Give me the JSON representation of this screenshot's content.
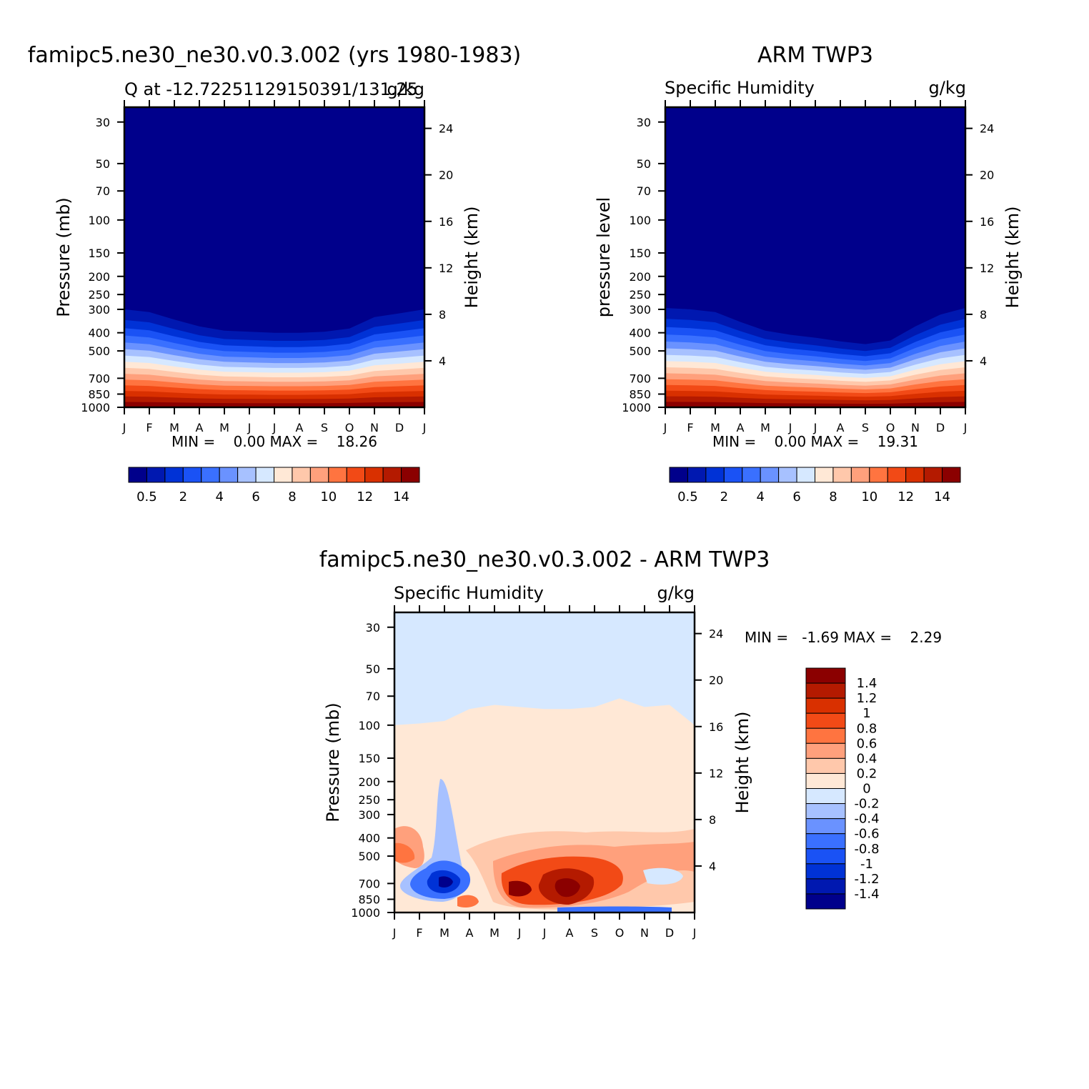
{
  "chart_data": [
    {
      "type": "heatmap",
      "title": "famipc5.ne30_ne30.v0.3.002 (yrs 1980-1983)",
      "subtitle_left": "Q at -12.72251129150391/131.25",
      "subtitle_right": "g/kg",
      "ylabel": "Pressure (mb)",
      "y2label": "Height (km)",
      "x": [
        "J",
        "F",
        "M",
        "A",
        "M",
        "J",
        "J",
        "A",
        "S",
        "O",
        "N",
        "D",
        "J"
      ],
      "y": [
        1000,
        850,
        700,
        500,
        400,
        300,
        250,
        200,
        150,
        100,
        70,
        50,
        30
      ],
      "y2": [
        4,
        8,
        12,
        16,
        20,
        24
      ],
      "yscale": "log",
      "ylim": [
        1000,
        25
      ],
      "stats_text": "MIN =    0.00 MAX =    18.26",
      "min": 0.0,
      "max": 18.26,
      "colorbar": {
        "orientation": "horizontal",
        "labels": [
          "0.5",
          "2",
          "4",
          "6",
          "8",
          "10",
          "12",
          "14"
        ],
        "levels": [
          0.5,
          1,
          2,
          3,
          4,
          5,
          6,
          7,
          8,
          9,
          10,
          11,
          12,
          13,
          14
        ],
        "colors": [
          "#00008b",
          "#0018b0",
          "#0032d6",
          "#1a52f5",
          "#3a70ff",
          "#6a92ff",
          "#a7c1ff",
          "#d6e8ff",
          "#ffe8d6",
          "#ffc8ab",
          "#ffa07c",
          "#ff7440",
          "#f24a16",
          "#d93000",
          "#b41a00",
          "#8b0000"
        ]
      },
      "transition_top_mb": [
        300,
        310,
        340,
        370,
        390,
        395,
        400,
        400,
        395,
        380,
        330,
        315,
        300
      ]
    },
    {
      "type": "heatmap",
      "title": "ARM TWP3",
      "subtitle_left": "Specific Humidity",
      "subtitle_right": "g/kg",
      "ylabel": "pressure level",
      "y2label": "Height (km)",
      "x": [
        "J",
        "F",
        "M",
        "A",
        "M",
        "J",
        "J",
        "A",
        "S",
        "O",
        "N",
        "D",
        "J"
      ],
      "y": [
        1000,
        850,
        700,
        500,
        400,
        300,
        250,
        200,
        150,
        100,
        70,
        50,
        30
      ],
      "y2": [
        4,
        8,
        12,
        16,
        20,
        24
      ],
      "yscale": "log",
      "ylim": [
        1000,
        25
      ],
      "stats_text": "MIN =    0.00 MAX =    19.31",
      "min": 0.0,
      "max": 19.31,
      "colorbar": {
        "orientation": "horizontal",
        "labels": [
          "0.5",
          "2",
          "4",
          "6",
          "8",
          "10",
          "12",
          "14"
        ],
        "levels": [
          0.5,
          1,
          2,
          3,
          4,
          5,
          6,
          7,
          8,
          9,
          10,
          11,
          12,
          13,
          14
        ],
        "colors": [
          "#00008b",
          "#0018b0",
          "#0032d6",
          "#1a52f5",
          "#3a70ff",
          "#6a92ff",
          "#a7c1ff",
          "#d6e8ff",
          "#ffe8d6",
          "#ffc8ab",
          "#ffa07c",
          "#ff7440",
          "#f24a16",
          "#d93000",
          "#b41a00",
          "#8b0000"
        ]
      },
      "transition_top_mb": [
        295,
        300,
        310,
        350,
        390,
        410,
        425,
        445,
        460,
        440,
        370,
        320,
        295
      ]
    },
    {
      "type": "heatmap",
      "title": "famipc5.ne30_ne30.v0.3.002 - ARM TWP3",
      "subtitle_left": "Specific Humidity",
      "subtitle_right": "g/kg",
      "ylabel": "Pressure (mb)",
      "y2label": "Height (km)",
      "x": [
        "J",
        "F",
        "M",
        "A",
        "M",
        "J",
        "J",
        "A",
        "S",
        "O",
        "N",
        "D",
        "J"
      ],
      "y": [
        1000,
        850,
        700,
        500,
        400,
        300,
        250,
        200,
        150,
        100,
        70,
        50,
        30
      ],
      "y2": [
        4,
        8,
        12,
        16,
        20,
        24
      ],
      "yscale": "log",
      "ylim": [
        1000,
        25
      ],
      "stats_text": "MIN =   -1.69 MAX =    2.29",
      "min": -1.69,
      "max": 2.29,
      "colorbar": {
        "orientation": "vertical",
        "labels": [
          "1.4",
          "1.2",
          "1",
          "0.8",
          "0.6",
          "0.4",
          "0.2",
          "0",
          "-0.2",
          "-0.4",
          "-0.6",
          "-0.8",
          "-1",
          "-1.2",
          "-1.4"
        ],
        "levels": [
          1.4,
          1.2,
          1,
          0.8,
          0.6,
          0.4,
          0.2,
          0,
          -0.2,
          -0.4,
          -0.6,
          -0.8,
          -1,
          -1.2,
          -1.4
        ],
        "colors": [
          "#8b0000",
          "#b41a00",
          "#d93000",
          "#f24a16",
          "#ff7440",
          "#ffa07c",
          "#ffc8ab",
          "#ffe8d6",
          "#d6e8ff",
          "#a7c1ff",
          "#6a92ff",
          "#3a70ff",
          "#1a52f5",
          "#0032d6",
          "#0018b0",
          "#00008b"
        ]
      },
      "zero_contour_top_mb": [
        100,
        98,
        95,
        82,
        78,
        80,
        82,
        82,
        80,
        72,
        80,
        78,
        100
      ]
    }
  ]
}
